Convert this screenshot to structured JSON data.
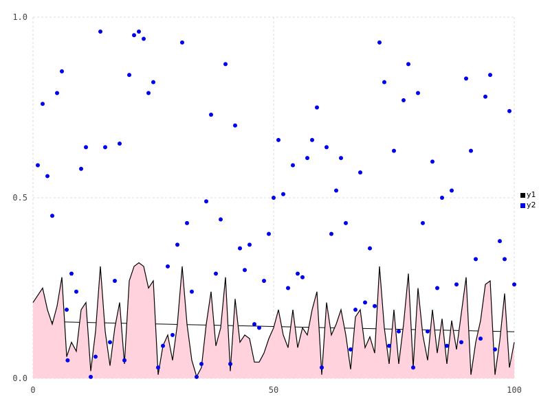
{
  "chart_data": {
    "type": "composite",
    "title": "",
    "xlabel": "",
    "ylabel": "",
    "axes": {
      "x": {
        "min": 0,
        "max": 100,
        "ticks": [
          0,
          50,
          100
        ],
        "tick_labels": [
          "0",
          "50",
          "100"
        ]
      },
      "y": {
        "min": 0,
        "max": 1,
        "ticks": [
          0,
          0.5,
          1
        ],
        "tick_labels": [
          "0.0",
          "0.5",
          "1.0"
        ]
      },
      "grid": "dashed",
      "grid_color": "#d9d9e4"
    },
    "legend": {
      "position": "right-outside",
      "entries": [
        {
          "label": "y1",
          "color": "#000000"
        },
        {
          "label": "y2",
          "color": "#0000ee"
        }
      ]
    },
    "series": [
      {
        "name": "y1",
        "type": "area-line",
        "line_color": "#000000",
        "fill_color": "#ffd2de",
        "x_start": 0,
        "x_step": 1,
        "values": [
          0.21,
          0.23,
          0.25,
          0.19,
          0.15,
          0.2,
          0.28,
          0.06,
          0.1,
          0.075,
          0.19,
          0.21,
          0.02,
          0.13,
          0.31,
          0.13,
          0.035,
          0.14,
          0.21,
          0.04,
          0.27,
          0.31,
          0.32,
          0.31,
          0.25,
          0.27,
          0.01,
          0.09,
          0.12,
          0.05,
          0.15,
          0.31,
          0.15,
          0.05,
          0.005,
          0.03,
          0.15,
          0.24,
          0.09,
          0.14,
          0.28,
          0.02,
          0.22,
          0.1,
          0.12,
          0.11,
          0.045,
          0.045,
          0.07,
          0.11,
          0.14,
          0.19,
          0.12,
          0.085,
          0.19,
          0.085,
          0.14,
          0.12,
          0.19,
          0.24,
          0.01,
          0.21,
          0.12,
          0.15,
          0.19,
          0.12,
          0.025,
          0.17,
          0.19,
          0.085,
          0.115,
          0.07,
          0.31,
          0.14,
          0.04,
          0.19,
          0.04,
          0.15,
          0.29,
          0.03,
          0.25,
          0.12,
          0.05,
          0.19,
          0.07,
          0.165,
          0.04,
          0.16,
          0.08,
          0.18,
          0.28,
          0.01,
          0.1,
          0.16,
          0.26,
          0.27,
          0.01,
          0.105,
          0.235,
          0.03,
          0.1
        ]
      },
      {
        "name": "y1-trendline",
        "type": "line",
        "color": "#000000",
        "points": [
          [
            0,
            0.158
          ],
          [
            100,
            0.129
          ]
        ],
        "note": "straight fit line drawn beneath the pink area fill"
      },
      {
        "name": "y2",
        "type": "scatter",
        "color": "#0000ee",
        "points": [
          [
            1,
            0.59
          ],
          [
            2,
            0.76
          ],
          [
            3,
            0.56
          ],
          [
            4,
            0.45
          ],
          [
            5,
            0.79
          ],
          [
            6,
            0.85
          ],
          [
            7,
            0.19
          ],
          [
            7.2,
            0.05
          ],
          [
            8,
            0.29
          ],
          [
            9,
            0.24
          ],
          [
            10,
            0.58
          ],
          [
            11,
            0.64
          ],
          [
            12,
            0.004
          ],
          [
            13,
            0.06
          ],
          [
            14,
            0.96
          ],
          [
            15,
            0.64
          ],
          [
            16,
            0.1
          ],
          [
            17,
            0.27
          ],
          [
            18,
            0.65
          ],
          [
            19,
            0.05
          ],
          [
            20,
            0.84
          ],
          [
            21,
            0.95
          ],
          [
            22,
            0.96
          ],
          [
            23,
            0.94
          ],
          [
            24,
            0.79
          ],
          [
            25,
            0.82
          ],
          [
            26,
            0.03
          ],
          [
            27,
            0.09
          ],
          [
            28,
            0.31
          ],
          [
            29,
            0.12
          ],
          [
            30,
            0.37
          ],
          [
            31,
            0.93
          ],
          [
            32,
            0.43
          ],
          [
            33,
            0.24
          ],
          [
            34,
            0.004
          ],
          [
            35,
            0.04
          ],
          [
            36,
            0.49
          ],
          [
            37,
            0.73
          ],
          [
            38,
            0.29
          ],
          [
            39,
            0.44
          ],
          [
            40,
            0.87
          ],
          [
            41,
            0.04
          ],
          [
            42,
            0.7
          ],
          [
            43,
            0.36
          ],
          [
            44,
            0.3
          ],
          [
            45,
            0.37
          ],
          [
            46,
            0.15
          ],
          [
            47,
            0.14
          ],
          [
            48,
            0.27
          ],
          [
            49,
            0.4
          ],
          [
            50,
            0.5
          ],
          [
            51,
            0.66
          ],
          [
            52,
            0.51
          ],
          [
            53,
            0.25
          ],
          [
            54,
            0.59
          ],
          [
            55,
            0.29
          ],
          [
            56,
            0.28
          ],
          [
            57,
            0.61
          ],
          [
            58,
            0.66
          ],
          [
            59,
            0.75
          ],
          [
            60,
            0.03
          ],
          [
            61,
            0.64
          ],
          [
            62,
            0.4
          ],
          [
            63,
            0.52
          ],
          [
            64,
            0.61
          ],
          [
            65,
            0.43
          ],
          [
            66,
            0.08
          ],
          [
            67,
            0.19
          ],
          [
            68,
            0.57
          ],
          [
            69,
            0.21
          ],
          [
            70,
            0.36
          ],
          [
            71,
            0.2
          ],
          [
            72,
            0.93
          ],
          [
            73,
            0.82
          ],
          [
            74,
            0.09
          ],
          [
            75,
            0.63
          ],
          [
            76,
            0.13
          ],
          [
            77,
            0.77
          ],
          [
            78,
            0.87
          ],
          [
            79,
            0.03
          ],
          [
            80,
            0.79
          ],
          [
            81,
            0.43
          ],
          [
            82,
            0.13
          ],
          [
            83,
            0.6
          ],
          [
            84,
            0.25
          ],
          [
            85,
            0.5
          ],
          [
            86,
            0.09
          ],
          [
            87,
            0.52
          ],
          [
            88,
            0.26
          ],
          [
            89,
            0.1
          ],
          [
            90,
            0.83
          ],
          [
            91,
            0.63
          ],
          [
            92,
            0.33
          ],
          [
            93,
            0.11
          ],
          [
            94,
            0.78
          ],
          [
            95,
            0.84
          ],
          [
            96,
            0.08
          ],
          [
            97,
            0.38
          ],
          [
            98,
            0.33
          ],
          [
            99,
            0.74
          ],
          [
            100,
            0.26
          ]
        ]
      }
    ]
  }
}
